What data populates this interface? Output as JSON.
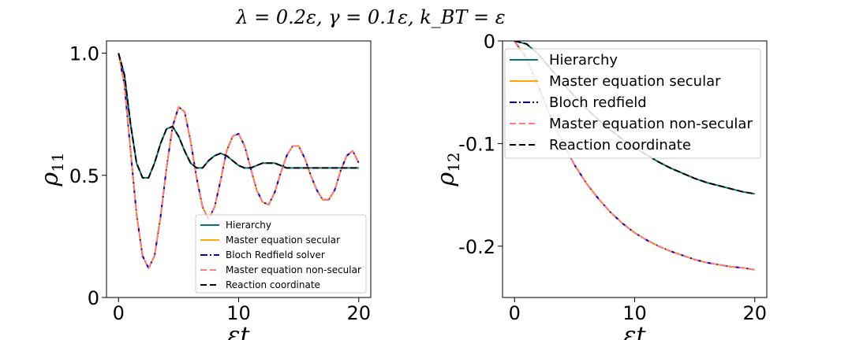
{
  "figure": {
    "title": "λ = 0.2ε, γ = 0.1ε, k_BT = ε"
  },
  "chart_data": [
    {
      "type": "line",
      "xlabel": "εt",
      "ylabel": "ρ11",
      "xlim": [
        -1,
        21
      ],
      "ylim": [
        0,
        1.05
      ],
      "xticks": [
        0,
        10,
        20
      ],
      "xtick_labels": [
        "0",
        "10",
        "20"
      ],
      "yticks": [
        0,
        0.5,
        1.0
      ],
      "ytick_labels": [
        "0",
        "0.5",
        "1.0"
      ],
      "grid": false,
      "legend_position": "lower-right",
      "legend": [
        "Hierarchy",
        "Master equation secular",
        "Bloch Redfield solver",
        "Master equation non-secular",
        "Reaction coordinate"
      ],
      "x": [
        0,
        0.5,
        1,
        1.5,
        2,
        2.5,
        3,
        3.5,
        4,
        4.5,
        5,
        5.5,
        6,
        6.5,
        7,
        7.5,
        8,
        8.5,
        9,
        9.5,
        10,
        10.5,
        11,
        11.5,
        12,
        12.5,
        13,
        13.5,
        14,
        14.5,
        15,
        15.5,
        16,
        16.5,
        17,
        17.5,
        18,
        18.5,
        19,
        19.5,
        20
      ],
      "series": [
        {
          "name": "Hierarchy",
          "color": "#0a7272",
          "dash": "solid",
          "values": [
            1.0,
            0.91,
            0.71,
            0.55,
            0.49,
            0.49,
            0.55,
            0.63,
            0.69,
            0.7,
            0.66,
            0.6,
            0.55,
            0.53,
            0.53,
            0.56,
            0.58,
            0.59,
            0.58,
            0.56,
            0.54,
            0.53,
            0.53,
            0.54,
            0.55,
            0.55,
            0.55,
            0.54,
            0.53,
            0.53,
            0.53,
            0.53,
            0.53,
            0.53,
            0.53,
            0.53,
            0.53,
            0.53,
            0.53,
            0.53,
            0.53
          ]
        },
        {
          "name": "Master equation secular",
          "color": "#ffa500",
          "dash": "solid",
          "values": [
            1.0,
            0.87,
            0.6,
            0.34,
            0.17,
            0.12,
            0.17,
            0.33,
            0.53,
            0.7,
            0.78,
            0.76,
            0.64,
            0.49,
            0.37,
            0.32,
            0.37,
            0.48,
            0.6,
            0.66,
            0.67,
            0.62,
            0.53,
            0.44,
            0.39,
            0.38,
            0.43,
            0.51,
            0.58,
            0.62,
            0.62,
            0.57,
            0.5,
            0.44,
            0.4,
            0.4,
            0.44,
            0.52,
            0.58,
            0.6,
            0.55
          ]
        },
        {
          "name": "Bloch Redfield solver",
          "color": "#0000cc",
          "dash": "dashdot",
          "values": [
            1.0,
            0.87,
            0.6,
            0.34,
            0.17,
            0.12,
            0.17,
            0.33,
            0.53,
            0.7,
            0.78,
            0.76,
            0.64,
            0.49,
            0.37,
            0.32,
            0.37,
            0.48,
            0.6,
            0.66,
            0.67,
            0.62,
            0.53,
            0.44,
            0.39,
            0.38,
            0.43,
            0.51,
            0.58,
            0.62,
            0.62,
            0.57,
            0.5,
            0.44,
            0.4,
            0.4,
            0.44,
            0.52,
            0.58,
            0.6,
            0.55
          ]
        },
        {
          "name": "Master equation non-secular",
          "color": "#ff7f7f",
          "dash": "dashed",
          "values": [
            1.0,
            0.87,
            0.6,
            0.34,
            0.17,
            0.12,
            0.17,
            0.33,
            0.53,
            0.7,
            0.78,
            0.76,
            0.64,
            0.49,
            0.37,
            0.32,
            0.37,
            0.48,
            0.6,
            0.66,
            0.67,
            0.62,
            0.53,
            0.44,
            0.39,
            0.38,
            0.43,
            0.51,
            0.58,
            0.62,
            0.62,
            0.57,
            0.5,
            0.44,
            0.4,
            0.4,
            0.44,
            0.52,
            0.58,
            0.6,
            0.55
          ]
        },
        {
          "name": "Reaction coordinate",
          "color": "#000000",
          "dash": "dashed",
          "values": [
            1.0,
            0.91,
            0.71,
            0.55,
            0.49,
            0.49,
            0.55,
            0.63,
            0.69,
            0.7,
            0.66,
            0.6,
            0.55,
            0.53,
            0.53,
            0.56,
            0.58,
            0.59,
            0.58,
            0.56,
            0.54,
            0.53,
            0.53,
            0.54,
            0.55,
            0.55,
            0.55,
            0.54,
            0.53,
            0.53,
            0.53,
            0.53,
            0.53,
            0.53,
            0.53,
            0.53,
            0.53,
            0.53,
            0.53,
            0.53,
            0.53
          ]
        }
      ]
    },
    {
      "type": "line",
      "xlabel": "εt",
      "ylabel": "ρ12",
      "xlim": [
        -1,
        21
      ],
      "ylim": [
        -0.25,
        0
      ],
      "xticks": [
        0,
        10,
        20
      ],
      "xtick_labels": [
        "0",
        "10",
        "20"
      ],
      "yticks": [
        0,
        -0.1,
        -0.2
      ],
      "ytick_labels": [
        "0",
        "-0.1",
        "-0.2"
      ],
      "grid": false,
      "legend_position": "upper-right",
      "legend": [
        "Hierarchy",
        "Master equation secular",
        "Bloch redfield",
        "Master equation non-secular",
        "Reaction coordinate"
      ],
      "x": [
        0,
        1,
        2,
        3,
        4,
        5,
        6,
        7,
        8,
        9,
        10,
        11,
        12,
        13,
        14,
        15,
        16,
        17,
        18,
        19,
        20
      ],
      "series": [
        {
          "name": "Hierarchy",
          "color": "#0a7272",
          "dash": "solid",
          "values": [
            0.0,
            -0.003,
            -0.013,
            -0.027,
            -0.041,
            -0.054,
            -0.066,
            -0.077,
            -0.087,
            -0.096,
            -0.104,
            -0.111,
            -0.118,
            -0.124,
            -0.129,
            -0.134,
            -0.138,
            -0.141,
            -0.144,
            -0.147,
            -0.149
          ]
        },
        {
          "name": "Master equation secular",
          "color": "#ffa500",
          "dash": "solid",
          "values": [
            0.0,
            -0.017,
            -0.045,
            -0.074,
            -0.099,
            -0.121,
            -0.139,
            -0.154,
            -0.167,
            -0.178,
            -0.187,
            -0.194,
            -0.2,
            -0.205,
            -0.209,
            -0.213,
            -0.216,
            -0.218,
            -0.22,
            -0.221,
            -0.223
          ]
        },
        {
          "name": "Bloch redfield",
          "color": "#0000cc",
          "dash": "dashdot",
          "values": [
            0.0,
            -0.017,
            -0.045,
            -0.074,
            -0.099,
            -0.121,
            -0.139,
            -0.154,
            -0.167,
            -0.178,
            -0.187,
            -0.194,
            -0.2,
            -0.205,
            -0.209,
            -0.213,
            -0.216,
            -0.218,
            -0.22,
            -0.221,
            -0.223
          ]
        },
        {
          "name": "Master equation non-secular",
          "color": "#ff7f7f",
          "dash": "dashed",
          "values": [
            0.0,
            -0.017,
            -0.045,
            -0.074,
            -0.099,
            -0.121,
            -0.139,
            -0.154,
            -0.167,
            -0.178,
            -0.187,
            -0.194,
            -0.2,
            -0.205,
            -0.209,
            -0.213,
            -0.216,
            -0.218,
            -0.22,
            -0.221,
            -0.223
          ]
        },
        {
          "name": "Reaction coordinate",
          "color": "#000000",
          "dash": "dashed",
          "values": [
            0.0,
            -0.003,
            -0.013,
            -0.027,
            -0.041,
            -0.054,
            -0.066,
            -0.077,
            -0.087,
            -0.096,
            -0.104,
            -0.111,
            -0.118,
            -0.124,
            -0.129,
            -0.134,
            -0.138,
            -0.141,
            -0.144,
            -0.147,
            -0.149
          ]
        }
      ]
    }
  ]
}
